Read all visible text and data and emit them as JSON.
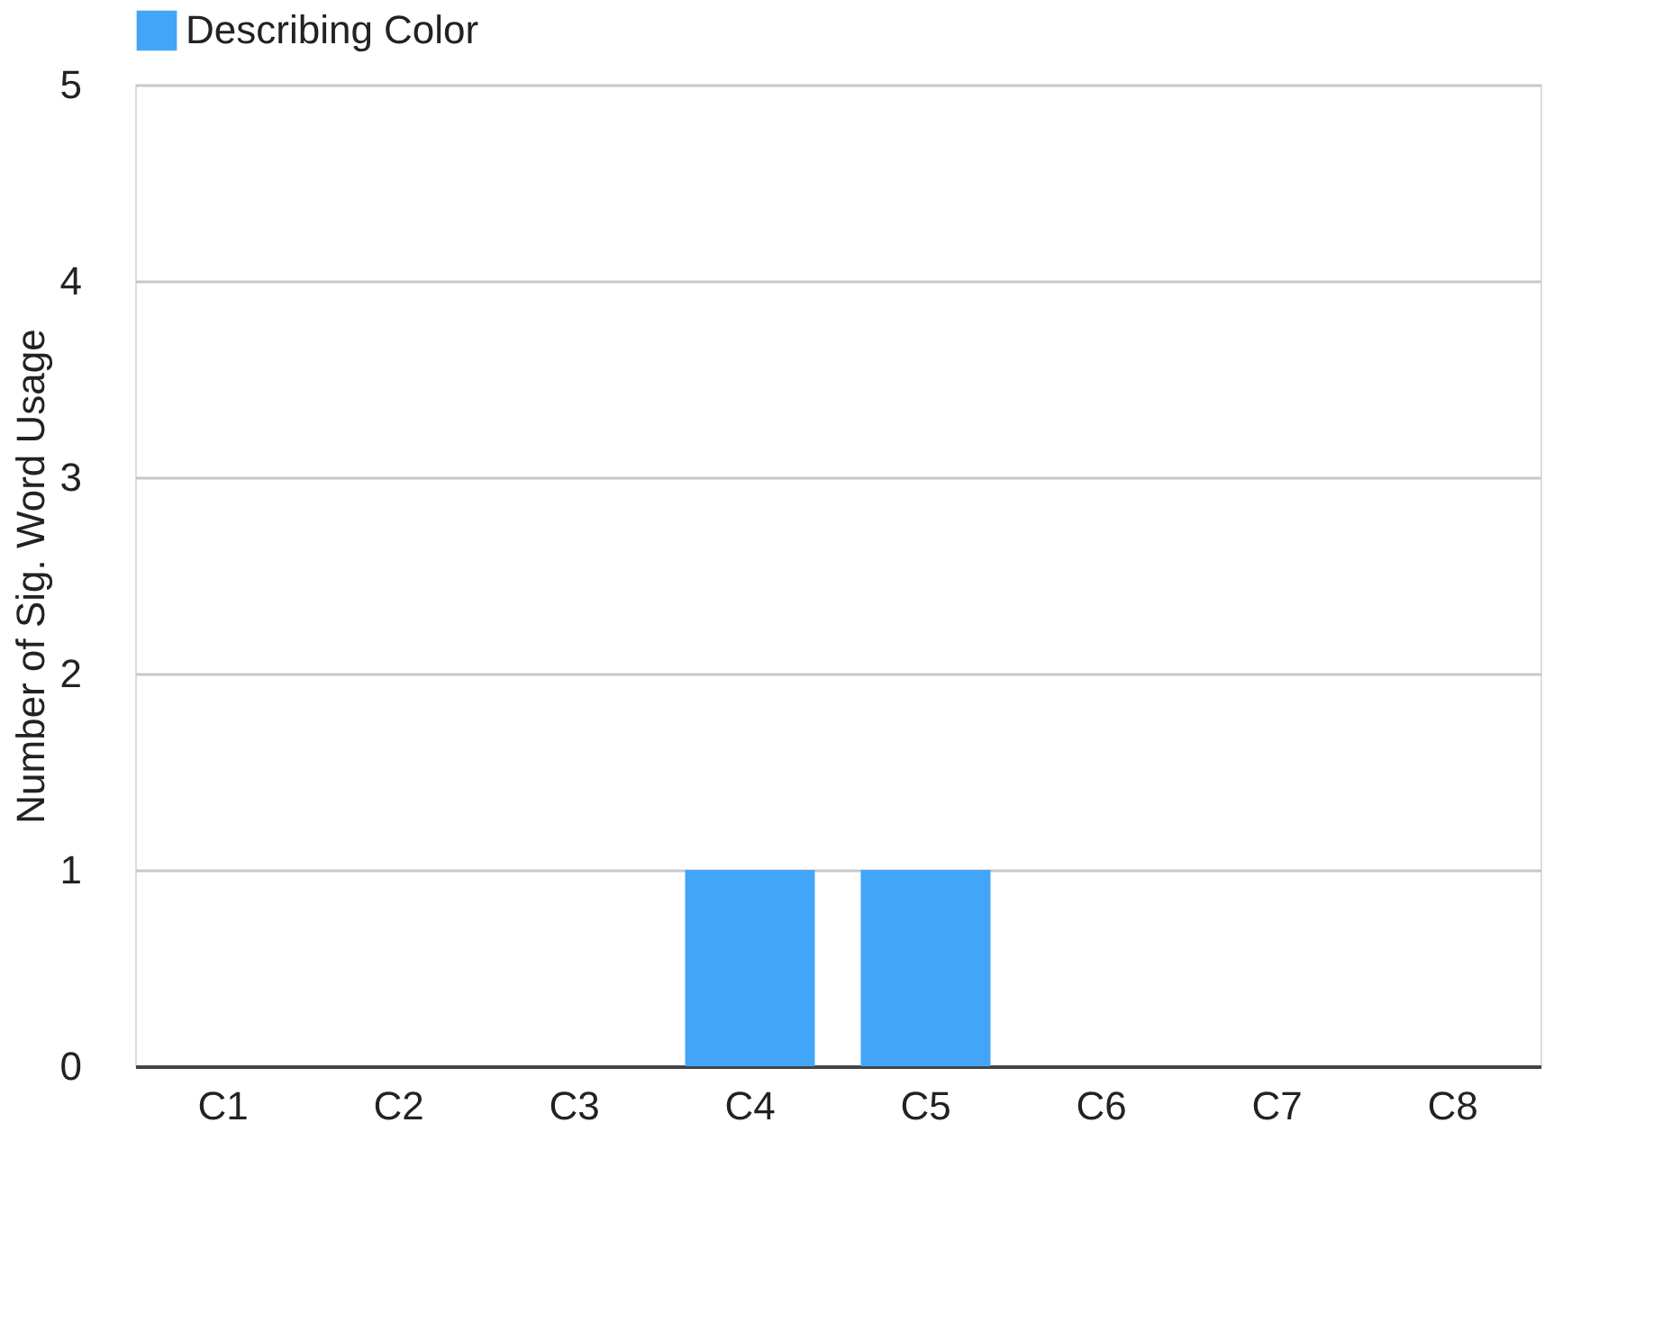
{
  "chart_data": {
    "type": "bar",
    "ylabel": "Number of Sig. Word Usage",
    "categories": [
      "C1",
      "C2",
      "C3",
      "C4",
      "C5",
      "C6",
      "C7",
      "C8"
    ],
    "series": [
      {
        "name": "Describing Color",
        "color": "#42a5f8",
        "values": [
          0,
          0,
          0,
          1,
          1,
          0,
          0,
          0
        ]
      }
    ],
    "ylim": [
      0,
      5
    ],
    "yticks": [
      0,
      1,
      2,
      3,
      4,
      5
    ],
    "grid": "y",
    "legend": "top"
  }
}
